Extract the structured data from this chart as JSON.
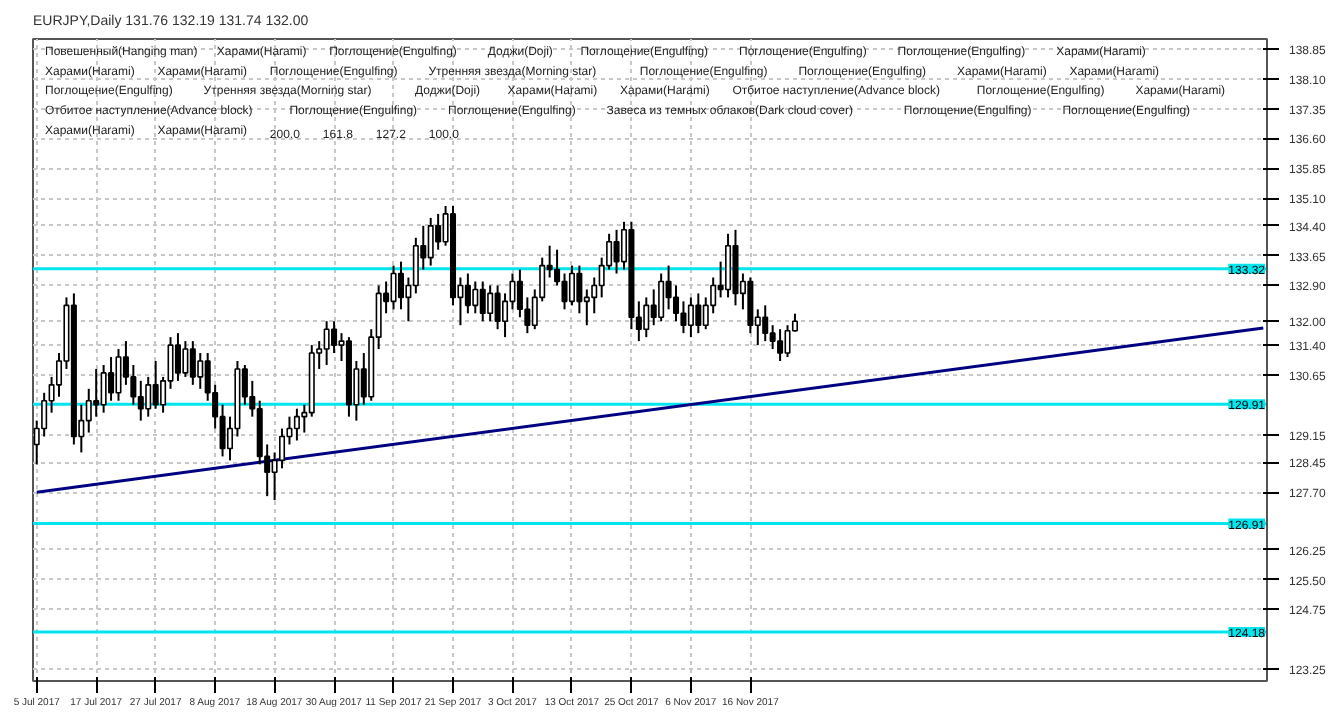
{
  "chart_data": {
    "type": "candlestick",
    "title": "EURJPY,Daily 131.76 132.19 131.74 132.00",
    "categories": [
      "5 Jul 2017",
      null,
      null,
      null,
      null,
      null,
      null,
      null,
      "17 Jul 2017",
      null,
      null,
      null,
      null,
      null,
      null,
      null,
      "27 Jul 2017",
      null,
      null,
      null,
      null,
      null,
      null,
      null,
      "8 Aug 2017",
      null,
      null,
      null,
      null,
      null,
      null,
      null,
      "18 Aug 2017",
      null,
      null,
      null,
      null,
      null,
      null,
      null,
      "30 Aug 2017",
      null,
      null,
      null,
      null,
      null,
      null,
      null,
      "11 Sep 2017",
      null,
      null,
      null,
      null,
      null,
      null,
      null,
      "21 Sep 2017",
      null,
      null,
      null,
      null,
      null,
      null,
      null,
      "3 Oct 2017",
      null,
      null,
      null,
      null,
      null,
      null,
      null,
      "13 Oct 2017",
      null,
      null,
      null,
      null,
      null,
      null,
      null,
      "25 Oct 2017",
      null,
      null,
      null,
      null,
      null,
      null,
      null,
      "6 Nov 2017",
      null,
      null,
      null,
      null,
      null,
      null,
      null,
      "16 Nov 2017",
      null,
      null,
      null,
      null,
      null,
      null,
      null,
      null,
      null,
      null,
      null,
      null,
      null,
      null,
      null,
      null,
      null,
      null,
      null,
      null,
      null,
      null,
      null,
      null,
      null,
      null,
      null,
      null,
      null,
      null,
      null,
      null,
      null,
      null,
      null,
      null,
      null,
      null,
      null,
      null,
      null,
      null,
      null,
      null,
      null,
      null,
      null,
      null,
      null,
      null,
      null,
      null,
      null,
      null,
      null,
      null,
      null,
      null,
      null,
      null,
      null,
      null,
      null,
      null,
      null,
      null,
      null,
      null,
      null
    ],
    "ohlc": [
      [
        128.9,
        129.5,
        128.4,
        129.3
      ],
      [
        129.3,
        130.2,
        129.1,
        130.0
      ],
      [
        130.0,
        130.6,
        129.7,
        130.4
      ],
      [
        130.4,
        131.2,
        130.1,
        131.0
      ],
      [
        131.0,
        132.6,
        130.8,
        132.4
      ],
      [
        132.4,
        132.7,
        128.9,
        129.1
      ],
      [
        129.1,
        129.9,
        128.7,
        129.5
      ],
      [
        129.5,
        130.3,
        129.2,
        130.0
      ],
      [
        130.0,
        130.8,
        129.6,
        129.9
      ],
      [
        129.9,
        130.9,
        129.7,
        130.7
      ],
      [
        130.7,
        131.1,
        130.0,
        130.2
      ],
      [
        130.2,
        131.3,
        130.0,
        131.1
      ],
      [
        131.1,
        131.5,
        130.4,
        130.6
      ],
      [
        130.6,
        130.9,
        129.9,
        130.1
      ],
      [
        130.1,
        130.5,
        129.5,
        129.8
      ],
      [
        129.8,
        130.6,
        129.6,
        130.4
      ],
      [
        130.4,
        131.0,
        129.8,
        129.9
      ],
      [
        129.9,
        130.6,
        129.7,
        130.5
      ],
      [
        130.5,
        131.6,
        130.3,
        131.4
      ],
      [
        131.4,
        131.7,
        130.5,
        130.7
      ],
      [
        130.7,
        131.5,
        130.6,
        131.3
      ],
      [
        131.3,
        131.5,
        130.4,
        130.6
      ],
      [
        130.6,
        131.2,
        130.3,
        131.0
      ],
      [
        131.0,
        131.2,
        130.0,
        130.2
      ],
      [
        130.2,
        130.4,
        129.3,
        129.6
      ],
      [
        129.6,
        129.9,
        128.6,
        128.8
      ],
      [
        128.8,
        129.6,
        128.5,
        129.3
      ],
      [
        129.3,
        131.0,
        129.1,
        130.8
      ],
      [
        130.8,
        130.9,
        129.9,
        130.1
      ],
      [
        130.1,
        130.5,
        129.6,
        129.8
      ],
      [
        129.8,
        130.0,
        128.4,
        128.6
      ],
      [
        128.6,
        128.9,
        127.6,
        128.2
      ],
      [
        128.2,
        128.7,
        127.5,
        128.5
      ],
      [
        128.5,
        129.3,
        128.3,
        129.1
      ],
      [
        129.1,
        129.6,
        128.9,
        129.3
      ],
      [
        129.3,
        129.8,
        129.0,
        129.6
      ],
      [
        129.6,
        129.9,
        129.2,
        129.7
      ],
      [
        129.7,
        131.4,
        129.6,
        131.2
      ],
      [
        131.2,
        131.5,
        130.8,
        131.3
      ],
      [
        131.3,
        132.0,
        130.9,
        131.8
      ],
      [
        131.8,
        132.0,
        131.2,
        131.4
      ],
      [
        131.4,
        131.7,
        131.0,
        131.5
      ],
      [
        131.5,
        131.6,
        129.6,
        129.9
      ],
      [
        129.9,
        131.0,
        129.5,
        130.8
      ],
      [
        130.8,
        131.2,
        129.9,
        130.1
      ],
      [
        130.1,
        131.8,
        130.0,
        131.6
      ],
      [
        131.6,
        132.9,
        131.3,
        132.7
      ],
      [
        132.7,
        133.0,
        132.2,
        132.5
      ],
      [
        132.5,
        133.4,
        132.3,
        133.2
      ],
      [
        133.2,
        133.5,
        132.3,
        132.6
      ],
      [
        132.6,
        133.1,
        132.0,
        132.9
      ],
      [
        132.9,
        134.1,
        132.7,
        133.9
      ],
      [
        133.9,
        134.4,
        133.3,
        133.6
      ],
      [
        133.6,
        134.6,
        133.4,
        134.4
      ],
      [
        134.4,
        134.7,
        133.8,
        134.0
      ],
      [
        134.0,
        134.9,
        133.9,
        134.7
      ],
      [
        134.7,
        134.9,
        132.4,
        132.6
      ],
      [
        132.6,
        133.1,
        131.9,
        132.9
      ],
      [
        132.9,
        133.2,
        132.2,
        132.4
      ],
      [
        132.4,
        133.0,
        132.2,
        132.8
      ],
      [
        132.8,
        133.0,
        132.0,
        132.2
      ],
      [
        132.2,
        132.9,
        132.0,
        132.7
      ],
      [
        132.7,
        132.9,
        131.8,
        132.0
      ],
      [
        132.0,
        132.7,
        131.6,
        132.5
      ],
      [
        132.5,
        133.2,
        132.3,
        133.0
      ],
      [
        133.0,
        133.3,
        132.1,
        132.3
      ],
      [
        132.3,
        132.6,
        131.7,
        131.9
      ],
      [
        131.9,
        132.8,
        131.8,
        132.6
      ],
      [
        132.6,
        133.6,
        132.5,
        133.4
      ],
      [
        133.4,
        133.9,
        133.1,
        133.3
      ],
      [
        133.3,
        133.8,
        132.9,
        133.0
      ],
      [
        133.0,
        133.2,
        132.3,
        132.5
      ],
      [
        132.5,
        133.4,
        132.4,
        133.2
      ],
      [
        133.2,
        133.4,
        132.2,
        132.5
      ],
      [
        132.5,
        132.8,
        131.9,
        132.6
      ],
      [
        132.6,
        133.1,
        132.2,
        132.9
      ],
      [
        132.9,
        133.6,
        132.6,
        133.4
      ],
      [
        133.4,
        134.2,
        133.3,
        134.0
      ],
      [
        134.0,
        134.3,
        133.2,
        133.5
      ],
      [
        133.5,
        134.5,
        133.3,
        134.3
      ],
      [
        134.3,
        134.5,
        131.8,
        132.1
      ],
      [
        132.1,
        132.5,
        131.5,
        131.8
      ],
      [
        131.8,
        132.6,
        131.6,
        132.4
      ],
      [
        132.4,
        132.8,
        131.9,
        132.1
      ],
      [
        132.1,
        133.2,
        132.0,
        133.0
      ],
      [
        133.0,
        133.4,
        132.3,
        132.6
      ],
      [
        132.6,
        132.9,
        132.0,
        132.2
      ],
      [
        132.2,
        132.5,
        131.7,
        131.9
      ],
      [
        131.9,
        132.6,
        131.6,
        132.4
      ],
      [
        132.4,
        132.7,
        131.7,
        131.9
      ],
      [
        131.9,
        132.6,
        131.8,
        132.4
      ],
      [
        132.4,
        133.1,
        132.2,
        132.9
      ],
      [
        132.9,
        133.5,
        132.6,
        132.8
      ],
      [
        132.8,
        134.2,
        132.6,
        133.9
      ],
      [
        133.9,
        134.3,
        132.4,
        132.7
      ],
      [
        132.7,
        133.2,
        132.3,
        133.0
      ],
      [
        133.0,
        133.1,
        131.7,
        131.9
      ],
      [
        131.9,
        132.3,
        131.4,
        132.1
      ],
      [
        132.1,
        132.4,
        131.5,
        131.7
      ],
      [
        131.7,
        131.9,
        131.3,
        131.5
      ],
      [
        131.5,
        131.8,
        131.0,
        131.2
      ],
      [
        131.2,
        131.9,
        131.1,
        131.76
      ],
      [
        131.76,
        132.19,
        131.74,
        132.0
      ],
      null,
      null,
      null,
      null,
      null,
      null,
      null,
      null,
      null,
      null,
      null,
      null,
      null,
      null,
      null,
      null,
      null,
      null,
      null,
      null,
      null,
      null,
      null,
      null,
      null,
      null,
      null,
      null,
      null,
      null,
      null,
      null,
      null,
      null,
      null,
      null,
      null,
      null,
      null,
      null,
      null,
      null,
      null,
      null,
      null,
      null,
      null,
      null,
      null,
      null,
      null,
      null,
      null,
      null,
      null,
      null,
      null,
      null,
      null,
      null,
      null,
      null,
      null
    ],
    "series": [
      {
        "type": "line",
        "color": "#000080",
        "values": [
          127.7,
          null,
          null,
          null,
          null,
          null,
          null,
          null,
          null,
          null,
          null,
          null,
          null,
          null,
          null,
          null,
          null,
          null,
          null,
          null,
          null,
          null,
          null,
          null,
          null,
          null,
          null,
          null,
          null,
          null,
          null,
          null,
          null,
          null,
          null,
          null,
          null,
          null,
          null,
          null,
          null,
          null,
          null,
          null,
          null,
          null,
          null,
          null,
          null,
          null,
          null,
          null,
          null,
          null,
          null,
          null,
          null,
          null,
          null,
          null,
          null,
          null,
          null,
          null,
          null,
          null,
          null,
          null,
          null,
          null,
          null,
          null,
          null,
          null,
          null,
          null,
          null,
          null,
          null,
          null,
          null,
          null,
          null,
          null,
          null,
          null,
          null,
          null,
          null,
          null,
          null,
          null,
          null,
          null,
          null,
          null,
          null,
          null,
          null,
          null,
          null,
          null,
          null,
          null,
          null,
          null,
          null,
          null,
          null,
          null,
          null,
          null,
          null,
          null,
          null,
          null,
          null,
          null,
          null,
          null,
          null,
          null,
          null,
          null,
          null,
          null,
          null,
          null,
          null,
          null,
          null,
          null,
          null,
          null,
          null,
          null,
          null,
          null,
          null,
          null,
          null,
          null,
          null,
          null,
          null,
          null,
          null,
          null,
          null,
          null,
          null,
          null,
          null,
          null,
          null,
          null,
          null,
          null,
          null,
          null,
          null,
          null,
          null,
          null,
          null,
          131.83
        ]
      }
    ],
    "ylim": [
      122.95,
      139.1
    ],
    "yticks": [
      {
        "value": 138.85,
        "label": "138.85"
      },
      {
        "value": 138.1,
        "label": "138.10"
      },
      {
        "value": 137.35,
        "label": "137.35"
      },
      {
        "value": 136.6,
        "label": "136.60"
      },
      {
        "value": 135.85,
        "label": "135.85"
      },
      {
        "value": 135.1,
        "label": "135.10"
      },
      {
        "value": 134.4,
        "label": "134.40"
      },
      {
        "value": 133.65,
        "label": "133.65"
      },
      {
        "value": 132.9,
        "label": "132.90"
      },
      {
        "value": 132.0,
        "label": "132.00"
      },
      {
        "value": 131.4,
        "label": "131.40"
      },
      {
        "value": 130.65,
        "label": "130.65"
      },
      {
        "value": 129.15,
        "label": "129.15"
      },
      {
        "value": 128.45,
        "label": "128.45"
      },
      {
        "value": 127.7,
        "label": "127.70"
      },
      {
        "value": 126.25,
        "label": "126.25"
      },
      {
        "value": 125.5,
        "label": "125.50"
      },
      {
        "value": 124.75,
        "label": "124.75"
      },
      {
        "value": 123.25,
        "label": "123.25"
      }
    ],
    "grid": true,
    "ref_lines": [
      {
        "axis": "y",
        "value": 133.32,
        "label": "133.32",
        "color": "#00e5ee"
      },
      {
        "axis": "y",
        "value": 129.91,
        "label": "129.91",
        "color": "#00e5ee"
      },
      {
        "axis": "y",
        "value": 126.91,
        "label": "126.91",
        "color": "#00e5ee"
      },
      {
        "axis": "y",
        "value": 124.18,
        "label": "124.18",
        "color": "#00e5ee"
      }
    ],
    "annotations": [
      "Повешенный(Hanging man)",
      "Харами(Harami)",
      "Поглощение(Engulfing)",
      "Доджи(Doji)",
      "Поглощение(Engulfing)",
      "Поглощение(Engulfing)",
      "Поглощение(Engulfing)",
      "Харами(Harami)",
      "Харами(Harami)",
      "Харами(Harami)",
      "Поглощение(Engulfing)",
      "Утренняя звезда(Morning star)",
      "Поглощение(Engulfing)",
      "Поглощение(Engulfing)",
      "Харами(Harami)",
      "Харами(Harami)",
      "Поглощение(Engulfing)",
      "Утренняя звезда(Morning star)",
      "Доджи(Doji)",
      "Харами(Harami)",
      "Харами(Harami)",
      "Отбитое наступление(Advance block)",
      "Поглощение(Engulfing)",
      "Харами(Harami)",
      "Отбитое наступление(Advance block)",
      "Поглощение(Engulfing)",
      "Поглощение(Engulfing)",
      "Завеса из темных облаков(Dark cloud cover)",
      "Поглощение(Engulfing)",
      "Поглощение(Engulfing)",
      "Харами(Harami)",
      "Харами(Harami)",
      "200.0",
      "161.8",
      "127.2",
      "100.0"
    ]
  }
}
